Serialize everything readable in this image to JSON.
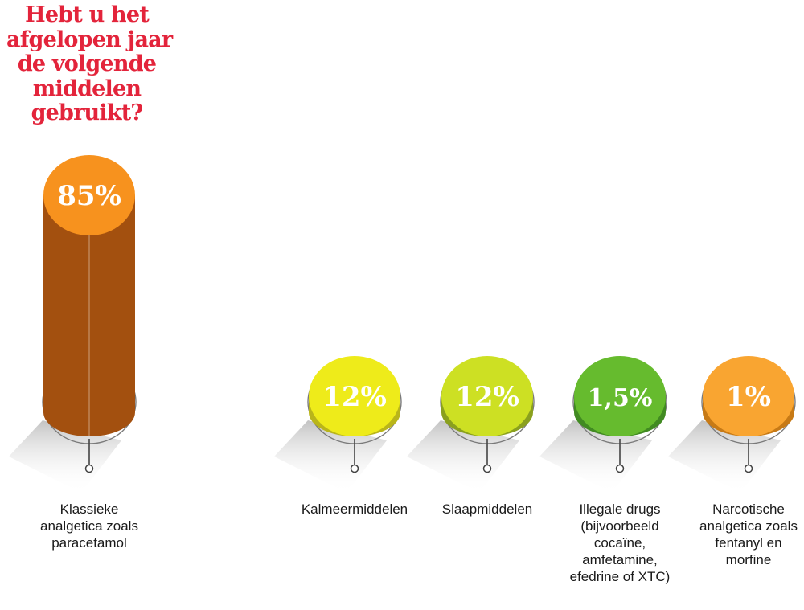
{
  "chart_data": {
    "type": "bar",
    "title_lines": [
      "Hebt u het",
      "afgelopen jaar",
      "de volgende",
      "middelen",
      "gebruikt?"
    ],
    "categories": [
      "Klassieke\nanalgetica zoals\nparacetamol",
      "Kalmeermiddelen",
      "Slaapmiddelen",
      "Illegale drugs\n(bijvoorbeeld\ncocaïne,\namfetamine,\nefedrine of XTC)",
      "Narcotische\nanalgetica zoals\nfentanyl en\nmorfine"
    ],
    "values": [
      85,
      12,
      12,
      1.5,
      1
    ],
    "value_labels": [
      "85%",
      "12%",
      "12%",
      "1,5%",
      "1%"
    ],
    "unit": "%",
    "colors": {
      "title": "#e3243b",
      "tops": [
        "#f7921e",
        "#eeeb1a",
        "#cde023",
        "#66bb2e",
        "#f9a531"
      ],
      "bodies": [
        "#a3500f",
        "#b9b51a",
        "#8aa01e",
        "#418a22",
        "#c77a16"
      ]
    }
  }
}
